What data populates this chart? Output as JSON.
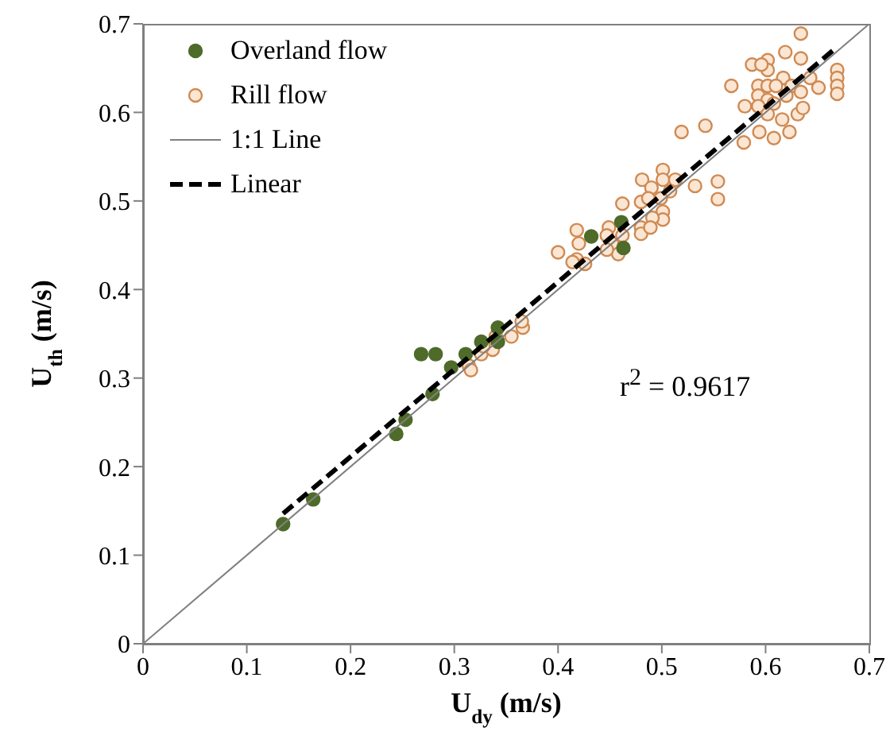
{
  "chart_data": {
    "type": "scatter",
    "xlabel": "U$_{dy}$ (m/s)",
    "ylabel": "U$_{th}$ (m/s)",
    "xlim": [
      0,
      0.7
    ],
    "ylim": [
      0,
      0.7
    ],
    "xticks": [
      0,
      0.1,
      0.2,
      0.3,
      0.4,
      0.5,
      0.6,
      0.7
    ],
    "yticks": [
      0,
      0.1,
      0.2,
      0.3,
      0.4,
      0.5,
      0.6,
      0.7
    ],
    "grid": false,
    "legend": "top left",
    "annotations": [
      "r$^{2}$ = 0.9617"
    ],
    "series": [
      {
        "name": "Overland flow",
        "marker": "circle",
        "color": "#4e6b2a",
        "x": [
          0.135,
          0.164,
          0.244,
          0.253,
          0.279,
          0.268,
          0.282,
          0.297,
          0.311,
          0.326,
          0.342,
          0.342,
          0.432,
          0.461,
          0.463
        ],
        "values": [
          0.135,
          0.163,
          0.237,
          0.253,
          0.282,
          0.327,
          0.327,
          0.312,
          0.327,
          0.341,
          0.357,
          0.341,
          0.46,
          0.476,
          0.447
        ]
      },
      {
        "name": "Rill flow",
        "marker": "circle",
        "color": "#d08a52",
        "x": [
          0.634,
          0.619,
          0.634,
          0.587,
          0.602,
          0.602,
          0.596,
          0.669,
          0.669,
          0.669,
          0.669,
          0.567,
          0.593,
          0.602,
          0.617,
          0.61,
          0.625,
          0.643,
          0.651,
          0.634,
          0.593,
          0.602,
          0.62,
          0.58,
          0.593,
          0.608,
          0.602,
          0.631,
          0.636,
          0.616,
          0.594,
          0.623,
          0.608,
          0.579,
          0.519,
          0.542,
          0.554,
          0.554,
          0.532,
          0.501,
          0.481,
          0.501,
          0.49,
          0.513,
          0.508,
          0.48,
          0.499,
          0.487,
          0.501,
          0.501,
          0.491,
          0.48,
          0.48,
          0.489,
          0.462,
          0.449,
          0.447,
          0.462,
          0.452,
          0.418,
          0.42,
          0.418,
          0.414,
          0.4,
          0.426,
          0.458,
          0.447,
          0.314,
          0.316,
          0.326,
          0.337,
          0.34,
          0.355,
          0.366,
          0.365,
          0.328
        ],
        "values": [
          0.689,
          0.668,
          0.661,
          0.654,
          0.659,
          0.648,
          0.654,
          0.648,
          0.639,
          0.63,
          0.621,
          0.63,
          0.63,
          0.63,
          0.639,
          0.63,
          0.63,
          0.639,
          0.628,
          0.623,
          0.619,
          0.614,
          0.619,
          0.607,
          0.607,
          0.61,
          0.598,
          0.598,
          0.605,
          0.592,
          0.578,
          0.578,
          0.571,
          0.566,
          0.578,
          0.585,
          0.522,
          0.502,
          0.517,
          0.535,
          0.524,
          0.524,
          0.515,
          0.524,
          0.511,
          0.499,
          0.503,
          0.503,
          0.488,
          0.479,
          0.481,
          0.47,
          0.463,
          0.47,
          0.497,
          0.47,
          0.461,
          0.461,
          0.452,
          0.467,
          0.452,
          0.434,
          0.431,
          0.442,
          0.429,
          0.44,
          0.445,
          0.314,
          0.309,
          0.327,
          0.332,
          0.347,
          0.347,
          0.357,
          0.364,
          0.336
        ]
      },
      {
        "name": "1:1 Line",
        "type": "line",
        "marker": "none",
        "line_style": "solid",
        "color": "#808080",
        "x": [
          0,
          0.7
        ],
        "values": [
          0,
          0.7
        ]
      },
      {
        "name": "Linear",
        "type": "line",
        "marker": "none",
        "line_style": "dashed",
        "color": "#000000",
        "x": [
          0.135,
          0.667
        ],
        "values": [
          0.147,
          0.672
        ]
      }
    ]
  }
}
